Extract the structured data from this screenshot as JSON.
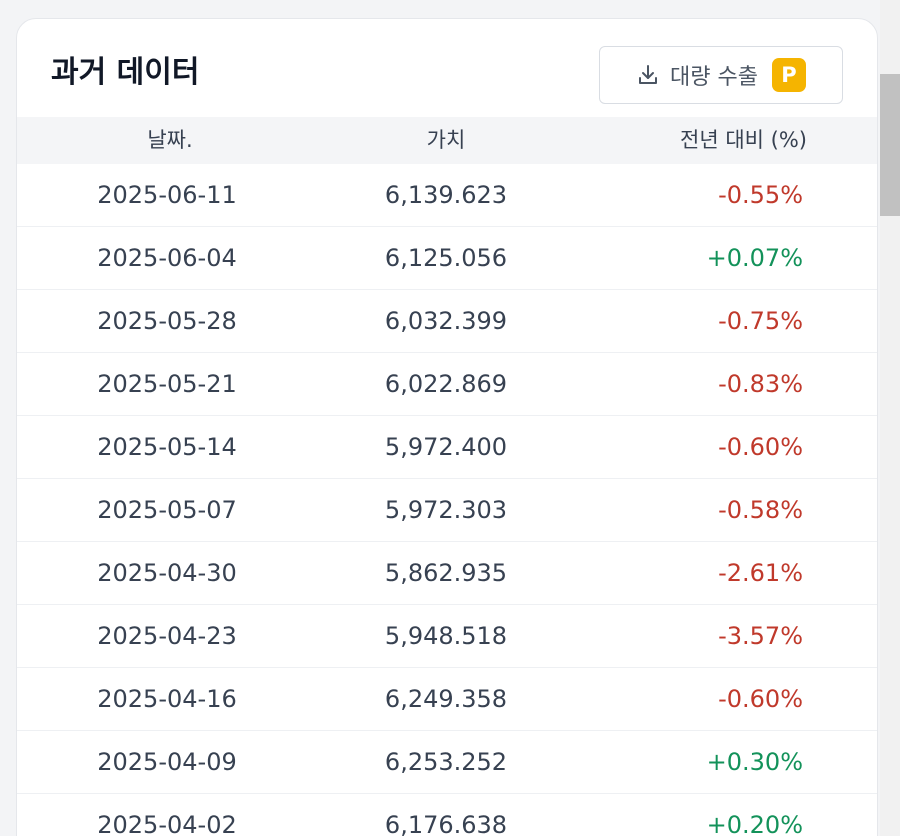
{
  "title": "과거 데이터",
  "export_button": {
    "label": "대량 수출",
    "badge": "P",
    "icon": "download-icon"
  },
  "columns": {
    "date": "날짜.",
    "value": "가치",
    "yoy": "전년 대비 (%)"
  },
  "colors": {
    "negative": "#c0392b",
    "positive": "#13925a",
    "badge": "#f5b400"
  },
  "rows": [
    {
      "date": "2025-06-11",
      "value": "6,139.623",
      "change": "-0.55%"
    },
    {
      "date": "2025-06-04",
      "value": "6,125.056",
      "change": "+0.07%"
    },
    {
      "date": "2025-05-28",
      "value": "6,032.399",
      "change": "-0.75%"
    },
    {
      "date": "2025-05-21",
      "value": "6,022.869",
      "change": "-0.83%"
    },
    {
      "date": "2025-05-14",
      "value": "5,972.400",
      "change": "-0.60%"
    },
    {
      "date": "2025-05-07",
      "value": "5,972.303",
      "change": "-0.58%"
    },
    {
      "date": "2025-04-30",
      "value": "5,862.935",
      "change": "-2.61%"
    },
    {
      "date": "2025-04-23",
      "value": "5,948.518",
      "change": "-3.57%"
    },
    {
      "date": "2025-04-16",
      "value": "6,249.358",
      "change": "-0.60%"
    },
    {
      "date": "2025-04-09",
      "value": "6,253.252",
      "change": "+0.30%"
    },
    {
      "date": "2025-04-02",
      "value": "6,176.638",
      "change": "+0.20%"
    }
  ]
}
